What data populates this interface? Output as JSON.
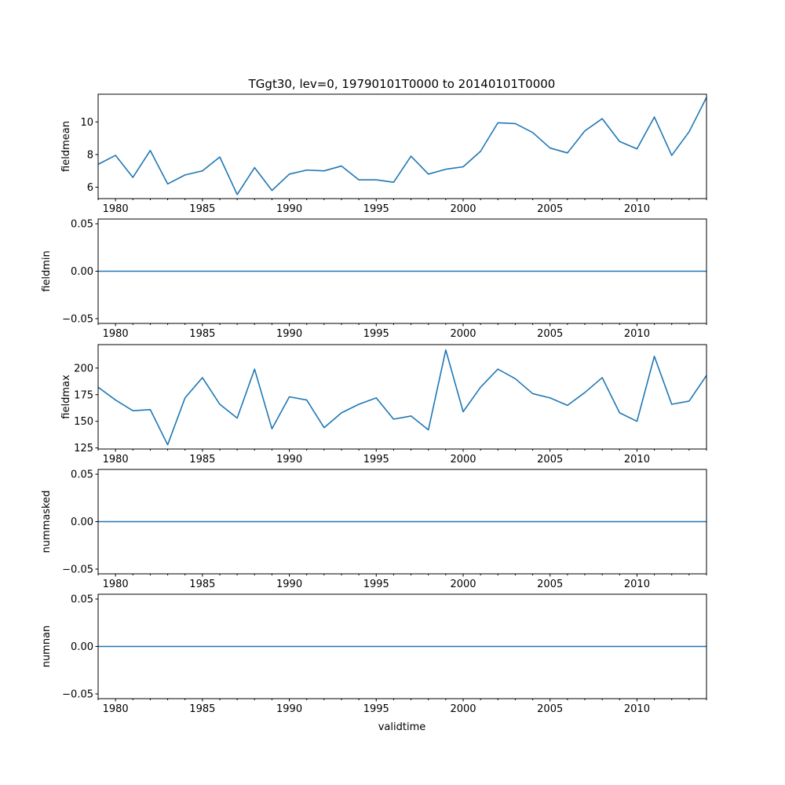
{
  "chart_data": {
    "type": "line",
    "title": "TGgt30, lev=0, 19790101T0000 to 20140101T0000",
    "xlabel": "validtime",
    "x_range": [
      1979,
      2014
    ],
    "x_major_ticks": [
      1980,
      1985,
      1990,
      1995,
      2000,
      2005,
      2010
    ],
    "x_tick_labels": [
      "1980",
      "1985",
      "1990",
      "1995",
      "2000",
      "2005",
      "2010"
    ],
    "years": [
      1979,
      1980,
      1981,
      1982,
      1983,
      1984,
      1985,
      1986,
      1987,
      1988,
      1989,
      1990,
      1991,
      1992,
      1993,
      1994,
      1995,
      1996,
      1997,
      1998,
      1999,
      2000,
      2001,
      2002,
      2003,
      2004,
      2005,
      2006,
      2007,
      2008,
      2009,
      2010,
      2011,
      2012,
      2013,
      2014
    ],
    "line_color": "#1f77b4",
    "panels": [
      {
        "ylabel": "fieldmean",
        "ylim": [
          5.3,
          11.7
        ],
        "yticks": [
          6,
          8,
          10
        ],
        "ytick_labels": [
          "6",
          "8",
          "10"
        ],
        "values": [
          7.4,
          7.95,
          6.6,
          8.25,
          6.2,
          6.75,
          7.0,
          7.85,
          5.55,
          7.2,
          5.8,
          6.8,
          7.05,
          7.0,
          7.3,
          6.45,
          6.45,
          6.3,
          7.9,
          6.8,
          7.1,
          7.25,
          8.2,
          9.95,
          9.9,
          9.35,
          8.4,
          8.1,
          9.45,
          10.2,
          8.8,
          8.35,
          10.3,
          7.95,
          9.4,
          11.5
        ]
      },
      {
        "ylabel": "fieldmin",
        "ylim": [
          -0.055,
          0.055
        ],
        "yticks": [
          -0.05,
          0.0,
          0.05
        ],
        "ytick_labels": [
          "−0.05",
          "0.00",
          "0.05"
        ],
        "values": [
          0,
          0,
          0,
          0,
          0,
          0,
          0,
          0,
          0,
          0,
          0,
          0,
          0,
          0,
          0,
          0,
          0,
          0,
          0,
          0,
          0,
          0,
          0,
          0,
          0,
          0,
          0,
          0,
          0,
          0,
          0,
          0,
          0,
          0,
          0,
          0
        ]
      },
      {
        "ylabel": "fieldmax",
        "ylim": [
          124,
          222
        ],
        "yticks": [
          125,
          150,
          175,
          200
        ],
        "ytick_labels": [
          "125",
          "150",
          "175",
          "200"
        ],
        "values": [
          182,
          170,
          160,
          161,
          128,
          172,
          191,
          166,
          153,
          199,
          143,
          173,
          170,
          144,
          158,
          166,
          172,
          152,
          155,
          142,
          217,
          159,
          182,
          199,
          190,
          176,
          172,
          165,
          177,
          191,
          158,
          150,
          211,
          166,
          169,
          193
        ]
      },
      {
        "ylabel": "nummasked",
        "ylim": [
          -0.055,
          0.055
        ],
        "yticks": [
          -0.05,
          0.0,
          0.05
        ],
        "ytick_labels": [
          "−0.05",
          "0.00",
          "0.05"
        ],
        "values": [
          0,
          0,
          0,
          0,
          0,
          0,
          0,
          0,
          0,
          0,
          0,
          0,
          0,
          0,
          0,
          0,
          0,
          0,
          0,
          0,
          0,
          0,
          0,
          0,
          0,
          0,
          0,
          0,
          0,
          0,
          0,
          0,
          0,
          0,
          0,
          0
        ]
      },
      {
        "ylabel": "numnan",
        "ylim": [
          -0.055,
          0.055
        ],
        "yticks": [
          -0.05,
          0.0,
          0.05
        ],
        "ytick_labels": [
          "−0.05",
          "0.00",
          "0.05"
        ],
        "values": [
          0,
          0,
          0,
          0,
          0,
          0,
          0,
          0,
          0,
          0,
          0,
          0,
          0,
          0,
          0,
          0,
          0,
          0,
          0,
          0,
          0,
          0,
          0,
          0,
          0,
          0,
          0,
          0,
          0,
          0,
          0,
          0,
          0,
          0,
          0,
          0
        ]
      }
    ]
  }
}
